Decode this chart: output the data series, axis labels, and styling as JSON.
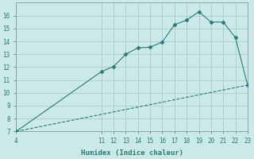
{
  "xlabel": "Humidex (Indice chaleur)",
  "ylabel": "",
  "background_color": "#cce9e9",
  "grid_color": "#aacccc",
  "line_color": "#2a7a7a",
  "marker_color": "#2a7a7a",
  "line1_x": [
    4,
    11,
    12,
    13,
    14,
    15,
    16,
    17,
    18,
    19,
    20,
    21,
    22,
    23
  ],
  "line1_y": [
    7.0,
    11.65,
    12.05,
    13.0,
    13.5,
    13.55,
    13.95,
    15.3,
    15.65,
    16.3,
    15.5,
    15.5,
    14.3,
    10.6
  ],
  "line2_x": [
    4,
    23
  ],
  "line2_y": [
    7.0,
    10.6
  ],
  "xlim": [
    4,
    23
  ],
  "ylim": [
    7,
    17
  ],
  "xticks": [
    4,
    11,
    12,
    13,
    14,
    15,
    16,
    17,
    18,
    19,
    20,
    21,
    22,
    23
  ],
  "yticks": [
    7,
    8,
    9,
    10,
    11,
    12,
    13,
    14,
    15,
    16
  ],
  "figsize": [
    3.2,
    2.0
  ],
  "dpi": 100
}
